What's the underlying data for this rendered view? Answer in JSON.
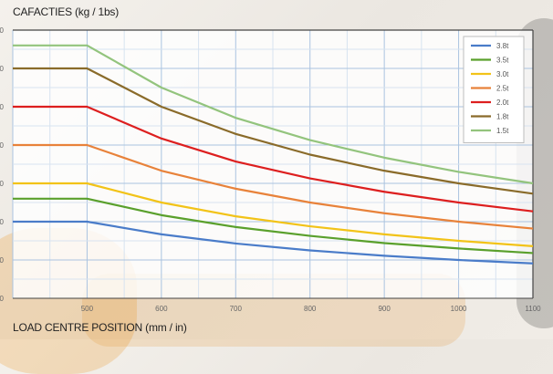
{
  "chart_data": {
    "type": "line",
    "title": "CAFACTIES (kg / 1bs)",
    "xlabel": "LOAD CENTRE POSITION (mm / in)",
    "ylabel": "",
    "x": [
      400,
      500,
      600,
      700,
      800,
      900,
      1000,
      1100
    ],
    "xticks": [
      "",
      "500",
      "600",
      "700",
      "800",
      "900",
      "1000",
      "1100"
    ],
    "xlim": [
      400,
      1100
    ],
    "ylim": [
      0,
      7
    ],
    "grid": true,
    "legend_position": "top-right",
    "series": [
      {
        "name": "3.8t",
        "color": "#4a7cc9",
        "values": [
          2.0,
          2.0,
          1.67,
          1.43,
          1.25,
          1.11,
          1.0,
          0.91
        ]
      },
      {
        "name": "3.5t",
        "color": "#5aa02c",
        "values": [
          2.6,
          2.6,
          2.17,
          1.86,
          1.63,
          1.44,
          1.3,
          1.18
        ]
      },
      {
        "name": "3.0t",
        "color": "#f2c318",
        "values": [
          3.0,
          3.0,
          2.5,
          2.14,
          1.88,
          1.67,
          1.5,
          1.36
        ]
      },
      {
        "name": "2.5t",
        "color": "#e8823a",
        "values": [
          4.0,
          4.0,
          3.33,
          2.86,
          2.5,
          2.22,
          2.0,
          1.82
        ]
      },
      {
        "name": "2.0t",
        "color": "#dd1f1f",
        "values": [
          5.0,
          5.0,
          4.17,
          3.57,
          3.13,
          2.78,
          2.5,
          2.27
        ]
      },
      {
        "name": "1.8t",
        "color": "#8a6b2a",
        "values": [
          6.0,
          6.0,
          5.0,
          4.29,
          3.75,
          3.33,
          3.0,
          2.73
        ]
      },
      {
        "name": "1.5t",
        "color": "#93c47d",
        "values": [
          6.6,
          6.6,
          5.5,
          4.71,
          4.13,
          3.67,
          3.3,
          3.0
        ]
      }
    ]
  },
  "axis_left_labels_visible": [
    "0",
    "0",
    "0",
    "0",
    "0",
    "0",
    "0",
    "0"
  ]
}
